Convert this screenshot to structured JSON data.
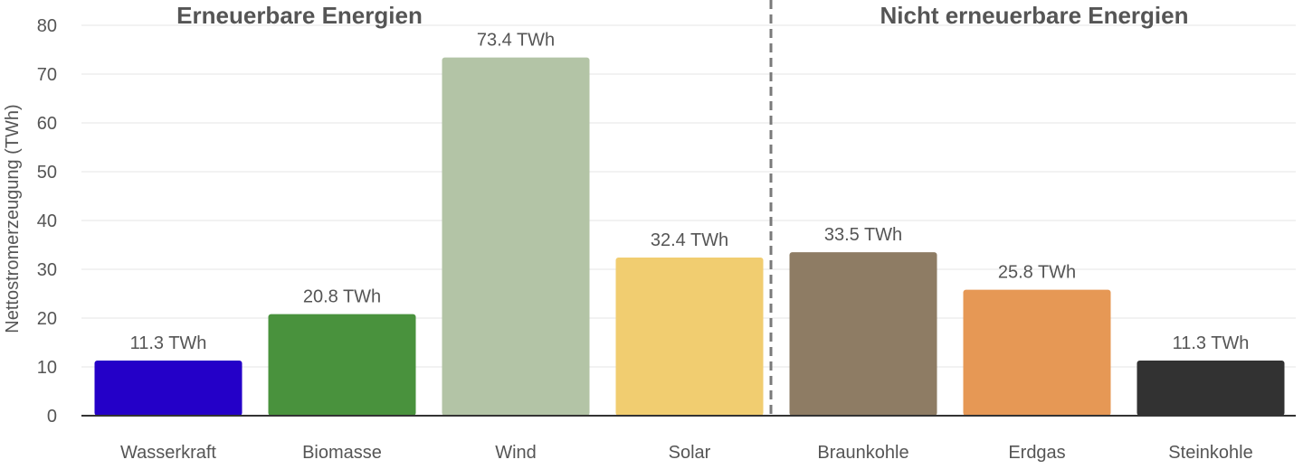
{
  "chart_data": {
    "type": "bar",
    "title": "",
    "xlabel": "",
    "ylabel": "Nettostromerzeugung (TWh)",
    "ylim": [
      0,
      80
    ],
    "yticks": [
      0,
      10,
      20,
      30,
      40,
      50,
      60,
      70,
      80
    ],
    "grid": true,
    "legend": "none",
    "categories": [
      "Wasserkraft",
      "Biomasse",
      "Wind",
      "Solar",
      "Braunkohle",
      "Erdgas",
      "Steinkohle"
    ],
    "values": [
      11.3,
      20.8,
      73.4,
      32.4,
      33.5,
      25.8,
      11.3
    ],
    "data_labels": [
      "11.3 TWh",
      "20.8 TWh",
      "73.4 TWh",
      "32.4 TWh",
      "33.5 TWh",
      "25.8 TWh",
      "11.3 TWh"
    ],
    "colors": [
      "#2400c8",
      "#49923d",
      "#b3c4a6",
      "#f1cd70",
      "#8e7c64",
      "#e69855",
      "#323232"
    ],
    "groups": [
      {
        "label": "Erneuerbare Energien",
        "categories": [
          "Wasserkraft",
          "Biomasse",
          "Wind",
          "Solar"
        ]
      },
      {
        "label": "Nicht erneuerbare Energien",
        "categories": [
          "Braunkohle",
          "Erdgas",
          "Steinkohle"
        ]
      }
    ],
    "separator": "dashed line between Solar and Braunkohle"
  },
  "colors": {
    "grid": "#e6e6e6",
    "axis": "#333333",
    "tick_text": "#555555",
    "label_text": "#555555",
    "group_text": "#555555",
    "separator": "#7a7a7a"
  }
}
